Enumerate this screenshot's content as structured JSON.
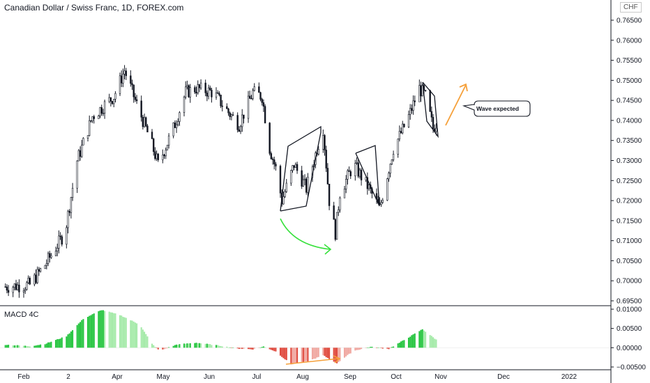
{
  "header": {
    "title": "Canadian Dollar / Swiss Franc, 1D, FOREX.com",
    "currency": "CHF"
  },
  "colors": {
    "candle": "#131722",
    "hist_up_strong": "#26c540",
    "hist_up_weak": "#a5eaa9",
    "hist_down_strong": "#e04a3e",
    "hist_down_weak": "#f0a7a0",
    "wave_arrow": "#f5a03a",
    "green_arrow": "#37e13c"
  },
  "chart_data": [
    {
      "type": "candlestick",
      "title": "Canadian Dollar / Swiss Franc, 1D, FOREX.com",
      "y_axis_ticks": [
        "0.76500",
        "0.76000",
        "0.75500",
        "0.75000",
        "0.74500",
        "0.74000",
        "0.73500",
        "0.73000",
        "0.72500",
        "0.72000",
        "0.71500",
        "0.71000",
        "0.70500",
        "0.70000",
        "0.69500"
      ],
      "ylim": [
        0.694,
        0.767
      ],
      "x_axis_ticks": [
        "Feb",
        "2",
        "Apr",
        "May",
        "Jun",
        "Jul",
        "Aug",
        "Sep",
        "Oct",
        "Nov",
        "Dec",
        "2022"
      ],
      "approx_close_path": [
        [
          "2021-01-20",
          0.6985
        ],
        [
          "2021-02-05",
          0.699
        ],
        [
          "2021-02-15",
          0.704
        ],
        [
          "2021-02-28",
          0.712
        ],
        [
          "2021-03-08",
          0.73
        ],
        [
          "2021-03-18",
          0.741
        ],
        [
          "2021-04-01",
          0.746
        ],
        [
          "2021-04-08",
          0.7525
        ],
        [
          "2021-04-15",
          0.745
        ],
        [
          "2021-04-25",
          0.735
        ],
        [
          "2021-04-30",
          0.729
        ],
        [
          "2021-05-10",
          0.738
        ],
        [
          "2021-05-18",
          0.747
        ],
        [
          "2021-05-25",
          0.748
        ],
        [
          "2021-06-05",
          0.747
        ],
        [
          "2021-06-15",
          0.742
        ],
        [
          "2021-06-22",
          0.739
        ],
        [
          "2021-07-01",
          0.747
        ],
        [
          "2021-07-07",
          0.746
        ],
        [
          "2021-07-12",
          0.733
        ],
        [
          "2021-07-16",
          0.728
        ],
        [
          "2021-07-20",
          0.72
        ],
        [
          "2021-07-28",
          0.729
        ],
        [
          "2021-08-05",
          0.723
        ],
        [
          "2021-08-12",
          0.733
        ],
        [
          "2021-08-16",
          0.738
        ],
        [
          "2021-08-20",
          0.72
        ],
        [
          "2021-08-24",
          0.712
        ],
        [
          "2021-08-27",
          0.722
        ],
        [
          "2021-09-05",
          0.729
        ],
        [
          "2021-09-15",
          0.723
        ],
        [
          "2021-09-22",
          0.718
        ],
        [
          "2021-10-01",
          0.733
        ],
        [
          "2021-10-10",
          0.74
        ],
        [
          "2021-10-18",
          0.748
        ],
        [
          "2021-10-22",
          0.746
        ],
        [
          "2021-10-27",
          0.738
        ],
        [
          "2021-10-30",
          0.74
        ]
      ],
      "annotations": [
        {
          "text": "Wave expected"
        }
      ]
    },
    {
      "type": "bar",
      "title": "MACD 4C",
      "y_axis_ticks": [
        "0.01000",
        "0.00500",
        "0.00000",
        "−0.00500"
      ],
      "ylim": [
        -0.0057,
        0.0102
      ],
      "approx_histogram_path": [
        [
          "2021-01-20",
          0.0008
        ],
        [
          "2021-02-05",
          0.0004
        ],
        [
          "2021-02-15",
          0.001
        ],
        [
          "2021-03-01",
          0.003
        ],
        [
          "2021-03-12",
          0.0075
        ],
        [
          "2021-03-24",
          0.0098
        ],
        [
          "2021-04-05",
          0.0085
        ],
        [
          "2021-04-18",
          0.006
        ],
        [
          "2021-04-26",
          0.001
        ],
        [
          "2021-05-01",
          -0.0008
        ],
        [
          "2021-05-12",
          0.0008
        ],
        [
          "2021-05-25",
          0.0013
        ],
        [
          "2021-06-10",
          0.0005
        ],
        [
          "2021-06-20",
          -0.0002
        ],
        [
          "2021-07-01",
          -0.0004
        ],
        [
          "2021-07-08",
          0.0003
        ],
        [
          "2021-07-16",
          -0.001
        ],
        [
          "2021-07-26",
          -0.0043
        ],
        [
          "2021-08-06",
          -0.0035
        ],
        [
          "2021-08-16",
          -0.002
        ],
        [
          "2021-08-25",
          -0.004
        ],
        [
          "2021-09-05",
          -0.0008
        ],
        [
          "2021-09-16",
          0.0002
        ],
        [
          "2021-09-28",
          -0.0003
        ],
        [
          "2021-10-08",
          0.002
        ],
        [
          "2021-10-20",
          0.0048
        ],
        [
          "2021-10-30",
          0.0018
        ]
      ]
    }
  ]
}
